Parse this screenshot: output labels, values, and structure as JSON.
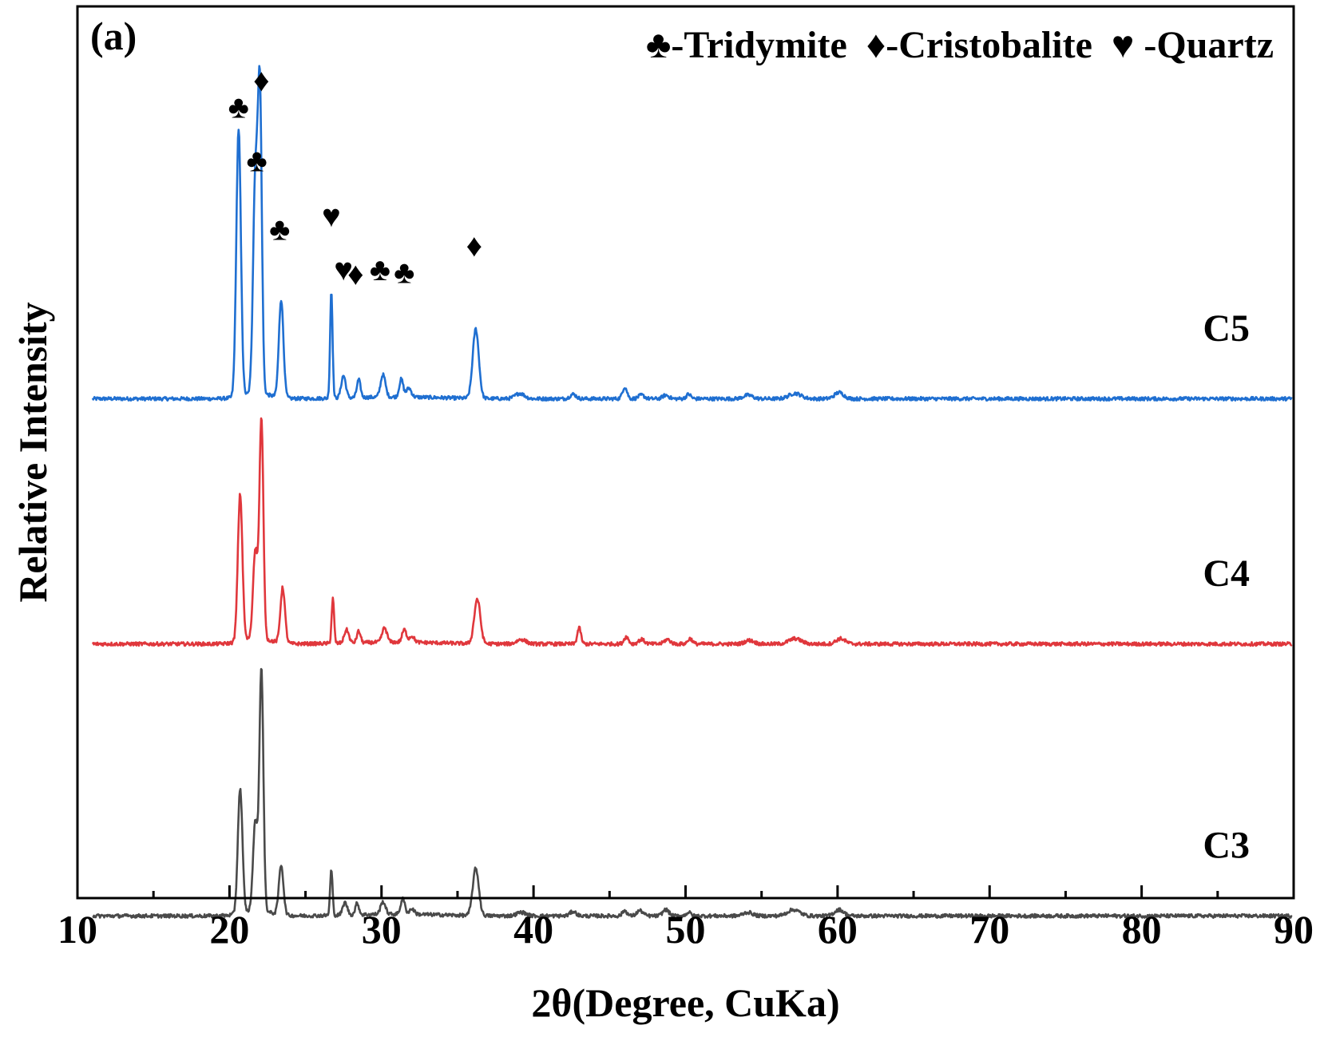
{
  "chart_data": {
    "type": "line",
    "panel_label": "(a)",
    "xlabel": "2θ(Degree, CuKa)",
    "ylabel": "Relative Intensity",
    "xlim": [
      10,
      90
    ],
    "x_ticks": [
      10,
      20,
      30,
      40,
      50,
      60,
      70,
      80,
      90
    ],
    "y_ticks_shown": false,
    "grid": false,
    "legend_position": "top-right",
    "legend": [
      {
        "symbol": "♣",
        "label": "-Tridymite",
        "phase": "tridymite"
      },
      {
        "symbol": "♦",
        "label": "-Cristobalite",
        "phase": "cristobalite"
      },
      {
        "symbol": "♥",
        "label": " -Quartz",
        "phase": "quartz"
      }
    ],
    "series": [
      {
        "name": "C5",
        "color": "#1f6fd1",
        "offset": 0.56,
        "peaks": [
          {
            "x": 20.6,
            "h": 0.3,
            "w": 0.15
          },
          {
            "x": 21.7,
            "h": 0.24,
            "w": 0.15
          },
          {
            "x": 22.0,
            "h": 0.33,
            "w": 0.13
          },
          {
            "x": 23.4,
            "h": 0.11,
            "w": 0.15
          },
          {
            "x": 26.7,
            "h": 0.12,
            "w": 0.08
          },
          {
            "x": 27.5,
            "h": 0.025,
            "w": 0.15
          },
          {
            "x": 28.5,
            "h": 0.02,
            "w": 0.12
          },
          {
            "x": 30.1,
            "h": 0.025,
            "w": 0.16
          },
          {
            "x": 31.3,
            "h": 0.02,
            "w": 0.13
          },
          {
            "x": 31.8,
            "h": 0.01,
            "w": 0.16
          },
          {
            "x": 36.2,
            "h": 0.078,
            "w": 0.2
          },
          {
            "x": 39.1,
            "h": 0.006,
            "w": 0.3
          },
          {
            "x": 42.6,
            "h": 0.005,
            "w": 0.2
          },
          {
            "x": 46.0,
            "h": 0.013,
            "w": 0.15
          },
          {
            "x": 47.1,
            "h": 0.004,
            "w": 0.2
          },
          {
            "x": 48.7,
            "h": 0.004,
            "w": 0.2
          },
          {
            "x": 50.2,
            "h": 0.005,
            "w": 0.15
          },
          {
            "x": 54.1,
            "h": 0.004,
            "w": 0.3
          },
          {
            "x": 57.2,
            "h": 0.006,
            "w": 0.4
          },
          {
            "x": 60.1,
            "h": 0.007,
            "w": 0.3
          }
        ],
        "markers": [
          {
            "x": 20.6,
            "y": 0.875,
            "symbol": "♣"
          },
          {
            "x": 22.1,
            "y": 0.905,
            "symbol": "♦"
          },
          {
            "x": 21.8,
            "y": 0.815,
            "symbol": "♣"
          },
          {
            "x": 23.3,
            "y": 0.738,
            "symbol": "♣"
          },
          {
            "x": 26.7,
            "y": 0.753,
            "symbol": "♥"
          },
          {
            "x": 27.5,
            "y": 0.693,
            "symbol": "♥"
          },
          {
            "x": 28.3,
            "y": 0.688,
            "symbol": "♦"
          },
          {
            "x": 29.9,
            "y": 0.693,
            "symbol": "♣"
          },
          {
            "x": 31.5,
            "y": 0.69,
            "symbol": "♣"
          },
          {
            "x": 36.1,
            "y": 0.72,
            "symbol": "♦"
          }
        ]
      },
      {
        "name": "C4",
        "color": "#e0373c",
        "offset": 0.285,
        "peaks": [
          {
            "x": 20.7,
            "h": 0.165,
            "w": 0.15
          },
          {
            "x": 21.7,
            "h": 0.1,
            "w": 0.15
          },
          {
            "x": 22.1,
            "h": 0.245,
            "w": 0.13
          },
          {
            "x": 23.5,
            "h": 0.062,
            "w": 0.15
          },
          {
            "x": 26.8,
            "h": 0.05,
            "w": 0.08
          },
          {
            "x": 27.7,
            "h": 0.015,
            "w": 0.15
          },
          {
            "x": 28.5,
            "h": 0.013,
            "w": 0.12
          },
          {
            "x": 30.2,
            "h": 0.016,
            "w": 0.16
          },
          {
            "x": 31.5,
            "h": 0.014,
            "w": 0.14
          },
          {
            "x": 32.0,
            "h": 0.007,
            "w": 0.16
          },
          {
            "x": 36.3,
            "h": 0.05,
            "w": 0.2
          },
          {
            "x": 39.2,
            "h": 0.005,
            "w": 0.3
          },
          {
            "x": 43.0,
            "h": 0.018,
            "w": 0.12
          },
          {
            "x": 46.1,
            "h": 0.008,
            "w": 0.15
          },
          {
            "x": 47.1,
            "h": 0.005,
            "w": 0.2
          },
          {
            "x": 48.8,
            "h": 0.005,
            "w": 0.2
          },
          {
            "x": 50.3,
            "h": 0.006,
            "w": 0.15
          },
          {
            "x": 54.2,
            "h": 0.004,
            "w": 0.3
          },
          {
            "x": 57.2,
            "h": 0.006,
            "w": 0.4
          },
          {
            "x": 60.2,
            "h": 0.006,
            "w": 0.3
          }
        ],
        "markers": []
      },
      {
        "name": "C3",
        "color": "#4a4a4a",
        "offset": -0.02,
        "peaks": [
          {
            "x": 20.7,
            "h": 0.14,
            "w": 0.15
          },
          {
            "x": 21.7,
            "h": 0.1,
            "w": 0.15
          },
          {
            "x": 22.1,
            "h": 0.27,
            "w": 0.13
          },
          {
            "x": 23.4,
            "h": 0.056,
            "w": 0.15
          },
          {
            "x": 26.7,
            "h": 0.051,
            "w": 0.08
          },
          {
            "x": 27.6,
            "h": 0.014,
            "w": 0.15
          },
          {
            "x": 28.4,
            "h": 0.013,
            "w": 0.12
          },
          {
            "x": 30.1,
            "h": 0.014,
            "w": 0.16
          },
          {
            "x": 31.4,
            "h": 0.017,
            "w": 0.14
          },
          {
            "x": 32.0,
            "h": 0.006,
            "w": 0.16
          },
          {
            "x": 36.2,
            "h": 0.053,
            "w": 0.2
          },
          {
            "x": 39.2,
            "h": 0.004,
            "w": 0.3
          },
          {
            "x": 42.6,
            "h": 0.005,
            "w": 0.2
          },
          {
            "x": 46.0,
            "h": 0.006,
            "w": 0.15
          },
          {
            "x": 47.0,
            "h": 0.006,
            "w": 0.2
          },
          {
            "x": 48.7,
            "h": 0.007,
            "w": 0.2
          },
          {
            "x": 50.2,
            "h": 0.004,
            "w": 0.15
          },
          {
            "x": 54.1,
            "h": 0.004,
            "w": 0.3
          },
          {
            "x": 57.1,
            "h": 0.007,
            "w": 0.4
          },
          {
            "x": 60.1,
            "h": 0.007,
            "w": 0.3
          }
        ],
        "markers": []
      }
    ]
  }
}
